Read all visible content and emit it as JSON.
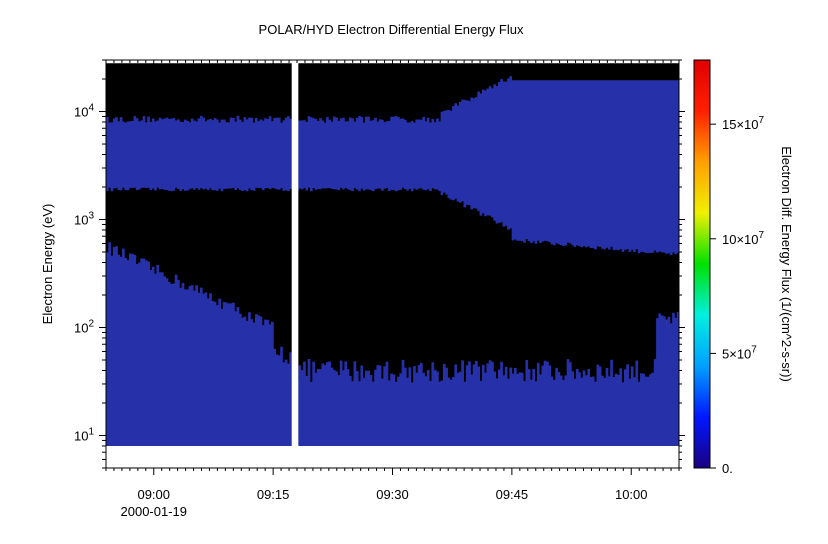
{
  "chart_data": {
    "type": "heatmap",
    "title": "POLAR/HYD  Electron Differential Energy Flux",
    "ylabel": "Electron Energy (eV)",
    "colorbar_label": "Electron Diff. Energy Flux (1/(cm^2-s-sr))",
    "x_ticks": [
      "09:00",
      "09:15",
      "09:30",
      "09:45",
      "10:00"
    ],
    "x_start_label": "2000-01-19",
    "y_ticks": [
      {
        "base": "10",
        "exp": "1"
      },
      {
        "base": "10",
        "exp": "2"
      },
      {
        "base": "10",
        "exp": "3"
      },
      {
        "base": "10",
        "exp": "4"
      }
    ],
    "colorbar_ticks": [
      {
        "value": 0,
        "label": "0."
      },
      {
        "value": 50000000,
        "label": "5×10",
        "exp": "7"
      },
      {
        "value": 100000000,
        "label": "10×10",
        "exp": "7"
      },
      {
        "value": 150000000,
        "label": "15×10",
        "exp": "7"
      }
    ],
    "colorbar_range": [
      0,
      178000000
    ],
    "y_scale": "log",
    "y_range_eV": [
      5,
      30000
    ],
    "time_range": [
      "08:54",
      "10:06"
    ],
    "data_gap": [
      "09:17:20",
      "09:18:10"
    ],
    "colors": {
      "background_fill": "#000000",
      "flux_fill": "#2630a8",
      "gap": "#ffffff"
    },
    "colorscale": [
      "#1a0080",
      "#0018ff",
      "#00a0ff",
      "#00f0e0",
      "#00e000",
      "#f0f000",
      "#ffa000",
      "#ff2000",
      "#e00000"
    ]
  }
}
